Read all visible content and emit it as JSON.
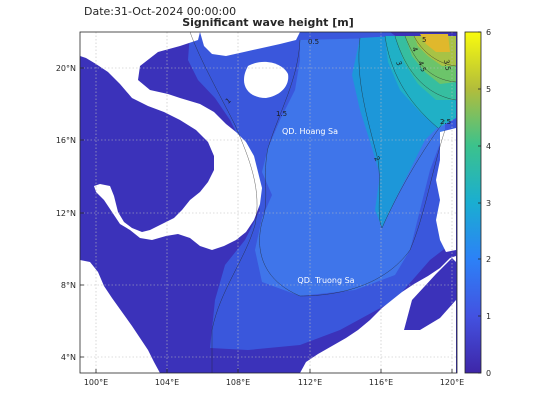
{
  "date_label": "Date:31-Oct-2024 00:00:00",
  "title": "Significant wave height [m]",
  "lon_ticks": [
    "100°E",
    "104°E",
    "108°E",
    "112°E",
    "116°E",
    "120°E"
  ],
  "lat_ticks": [
    "20°N",
    "16°N",
    "12°N",
    "8°N",
    "4°N"
  ],
  "colorbar": {
    "ticks": [
      "6",
      "5",
      "4",
      "3",
      "2",
      "1",
      "0"
    ],
    "min": 0,
    "max": 6,
    "colors": [
      "#3e26a8",
      "#4352e1",
      "#2c81f7",
      "#1aaed1",
      "#3cc28c",
      "#b2bd3b",
      "#f9fb0e"
    ]
  },
  "labels": {
    "hoang_sa": "QD. Hoang Sa",
    "truong_sa": "QD. Truong Sa"
  },
  "contour_labels": [
    "0.5",
    "1",
    "1.5",
    "2",
    "2.5",
    "3",
    "3.5",
    "4",
    "4.5",
    "5"
  ],
  "colors": {
    "land": "#ffffff",
    "low": "#3a30b8",
    "mid": "#3a6ee8",
    "high": "#27aed2"
  }
}
